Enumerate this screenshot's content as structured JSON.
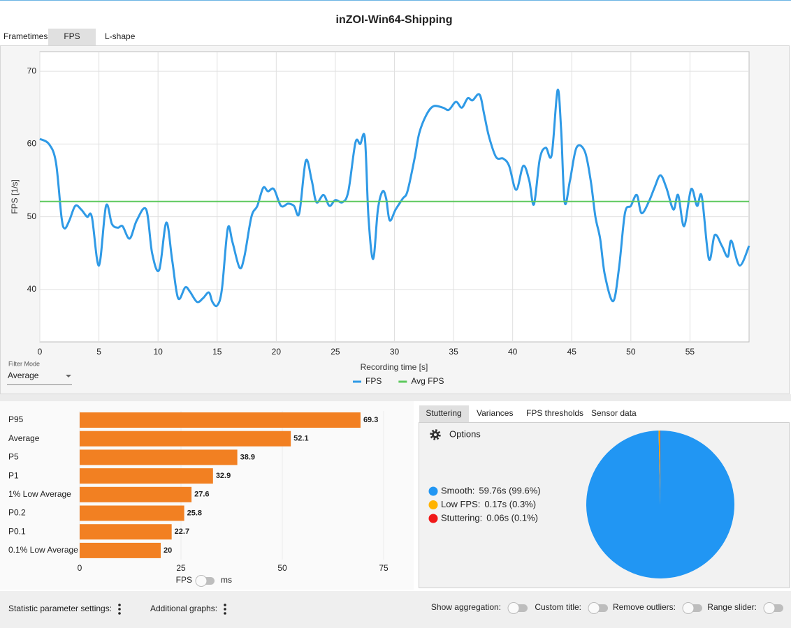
{
  "window": {
    "title": "inZOI-Win64-Shipping"
  },
  "tabs": [
    "Frametimes",
    "FPS",
    "L-shape"
  ],
  "filter_mode": {
    "label": "Filter Mode",
    "value": "Average"
  },
  "analysis_tabs": [
    "Stuttering",
    "Variances",
    "FPS thresholds",
    "Sensor data"
  ],
  "options_label": "Options",
  "unit_toggle": {
    "left": "FPS",
    "right": "ms"
  },
  "footer": {
    "left": [
      "Statistic parameter settings:",
      "Additional graphs:"
    ],
    "right": [
      "Show aggregation:",
      "Custom title:",
      "Remove outliers:",
      "Range slider:"
    ]
  },
  "chart_data": [
    {
      "type": "line",
      "xlabel": "Recording time [s]",
      "ylabel": "FPS [1/s]",
      "xlim": [
        0,
        60
      ],
      "ylim": [
        32.8,
        72.7
      ],
      "xticks": [
        0,
        5,
        10,
        15,
        20,
        25,
        30,
        35,
        40,
        45,
        50,
        55
      ],
      "yticks": [
        40,
        50,
        60,
        70
      ],
      "grid": true,
      "series": [
        {
          "name": "FPS",
          "color": "#2f9ae6",
          "x": [
            0,
            0.77,
            1.36,
            1.83,
            2.1,
            2.5,
            3.0,
            3.5,
            4.0,
            4.4,
            5.0,
            5.6,
            6.1,
            6.6,
            7.0,
            7.6,
            8.2,
            9.0,
            9.5,
            10.1,
            10.7,
            11.2,
            11.7,
            12.3,
            12.7,
            13.3,
            13.8,
            14.3,
            14.6,
            15.0,
            15.4,
            15.9,
            16.3,
            16.9,
            17.3,
            17.9,
            18.4,
            18.9,
            19.3,
            19.8,
            20.4,
            21.0,
            21.5,
            21.95,
            22.5,
            23.0,
            23.4,
            24.0,
            24.5,
            25.0,
            25.6,
            26.1,
            26.7,
            27.1,
            27.5,
            27.8,
            28.2,
            28.6,
            29.0,
            29.3,
            29.6,
            30.1,
            30.7,
            31.1,
            31.7,
            32.1,
            32.7,
            33.3,
            34.1,
            34.6,
            35.2,
            35.7,
            36.2,
            36.6,
            37.2,
            37.6,
            38.0,
            38.6,
            39.2,
            39.7,
            40.3,
            40.9,
            41.4,
            41.8,
            42.3,
            42.8,
            43.3,
            43.8,
            44.1,
            44.4,
            44.85,
            45.4,
            46.1,
            46.6,
            47.0,
            47.4,
            47.8,
            48.5,
            49.0,
            49.5,
            50.0,
            50.5,
            50.9,
            51.5,
            52.0,
            52.5,
            53.0,
            53.6,
            54.0,
            54.5,
            55.1,
            55.6,
            56.0,
            56.6,
            57.1,
            57.7,
            58.2,
            58.5,
            59.2,
            60.0
          ],
          "values": [
            60.7,
            60,
            57.5,
            50,
            48.4,
            49.5,
            51.5,
            51,
            50,
            50,
            43.3,
            51.5,
            49,
            48.5,
            48.7,
            47,
            49.5,
            51,
            45,
            42.7,
            49.2,
            44,
            38.8,
            40.3,
            39.7,
            38.3,
            38.8,
            39.6,
            38.3,
            37.8,
            40,
            48.4,
            46.5,
            43,
            44.5,
            50,
            51.5,
            54,
            53.5,
            53.8,
            51.5,
            51.8,
            51.5,
            50.5,
            57.7,
            55,
            52,
            53,
            51.5,
            52.3,
            52,
            53.5,
            60.2,
            60,
            60.8,
            50,
            44.2,
            51,
            53.5,
            52.5,
            49.5,
            51,
            52.5,
            53.5,
            58,
            61.5,
            64,
            65.2,
            65,
            64.7,
            65.8,
            65,
            66.3,
            66,
            66.8,
            64,
            61,
            58.2,
            58,
            57,
            53.7,
            57,
            55,
            51.7,
            58,
            59.5,
            58.5,
            67.4,
            62,
            52,
            55,
            59.5,
            59,
            55,
            50,
            47,
            42,
            38.4,
            43,
            50.5,
            51.5,
            53,
            50.5,
            52,
            54,
            55.7,
            54,
            51,
            53,
            48.7,
            53.8,
            51.5,
            52.8,
            44.2,
            47.5,
            46,
            44.5,
            46.7,
            43.3,
            46
          ]
        },
        {
          "name": "Avg FPS",
          "color": "#5ec95e",
          "x": [
            0,
            60
          ],
          "values": [
            52.1,
            52.1
          ]
        }
      ]
    },
    {
      "type": "bar",
      "orientation": "horizontal",
      "categories": [
        "P95",
        "Average",
        "P5",
        "P1",
        "1% Low Average",
        "P0.2",
        "P0.1",
        "0.1% Low Average"
      ],
      "values": [
        69.3,
        52.1,
        38.9,
        32.9,
        27.6,
        25.8,
        22.7,
        20
      ],
      "color": "#f28022",
      "xlim": [
        0,
        75
      ],
      "xticks": [
        0,
        25,
        50,
        75
      ]
    },
    {
      "type": "pie",
      "categories": [
        "Smooth:",
        "Low FPS:",
        "Stuttering:"
      ],
      "values": [
        59.76,
        0.17,
        0.06
      ],
      "value_labels": [
        "59.76s (99.6%)",
        "0.17s (0.3%)",
        "0.06s (0.1%)"
      ],
      "colors": [
        "#2196f3",
        "#ffb300",
        "#f01818"
      ]
    }
  ]
}
